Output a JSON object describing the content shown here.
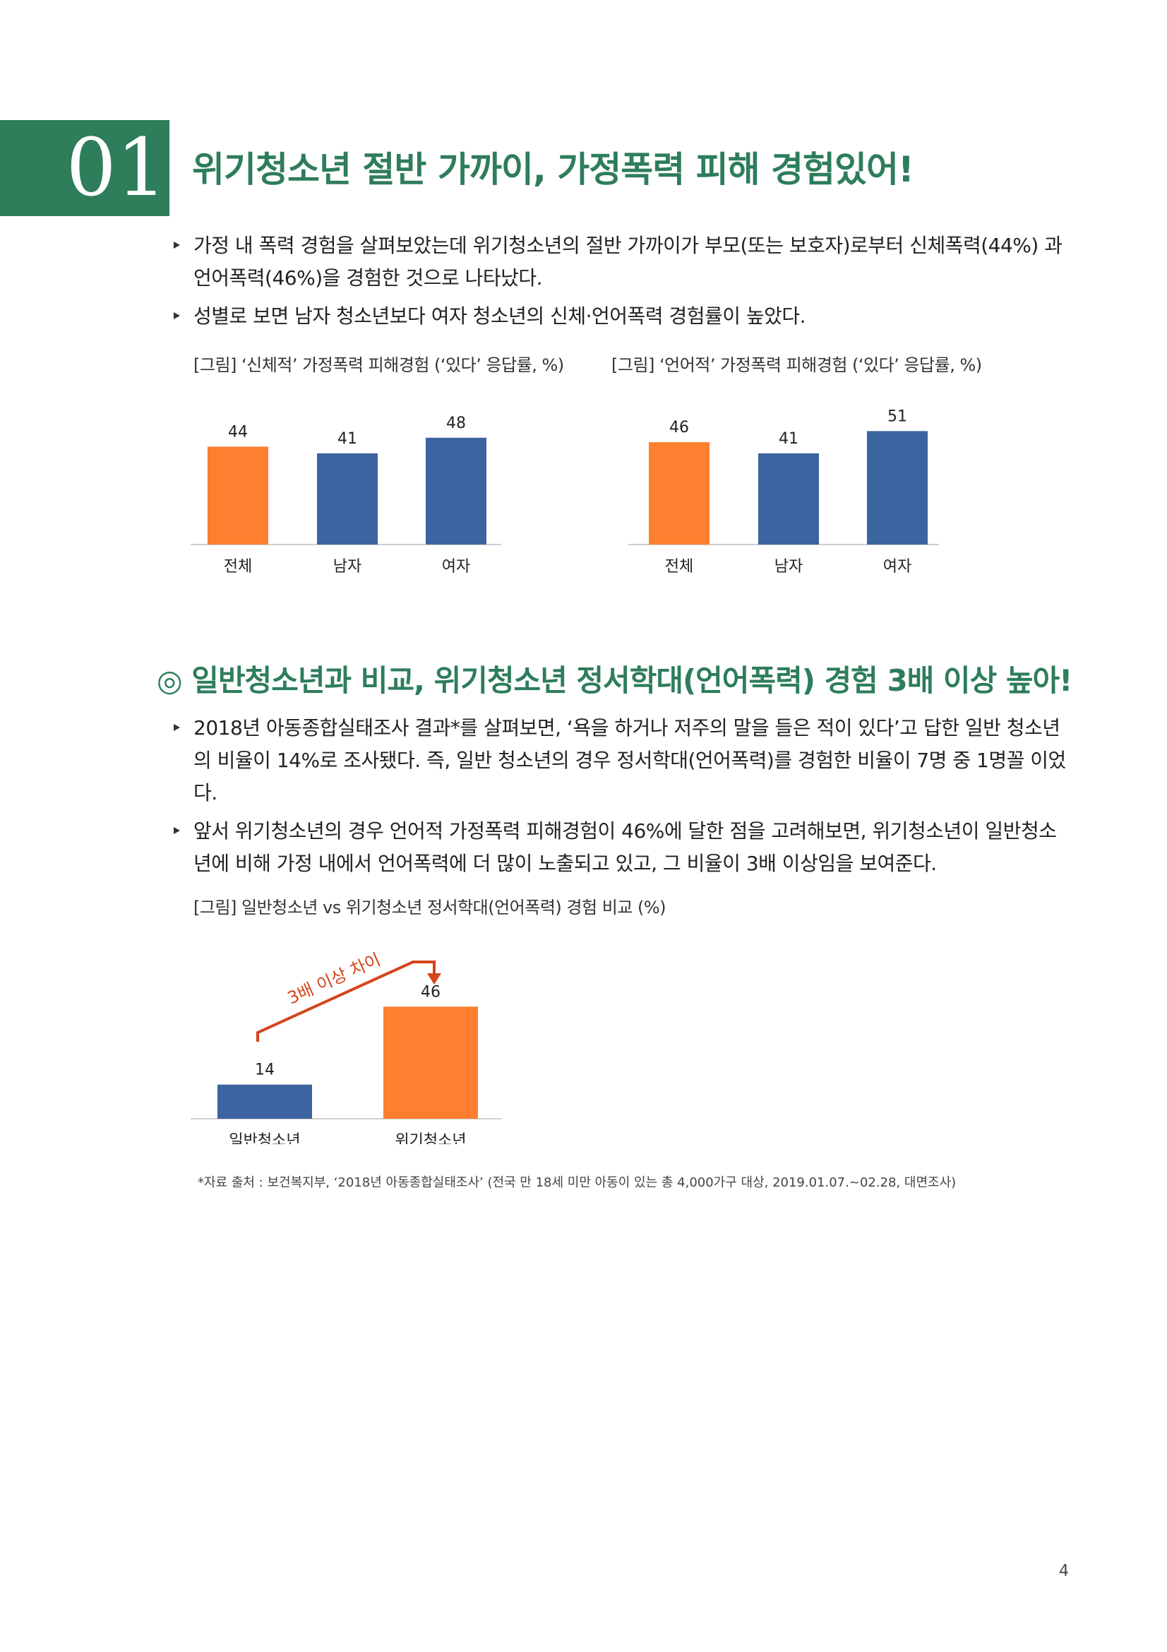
{
  "section": {
    "number": "01",
    "title": "위기청소년 절반 가까이, 가정폭력 피해 경험있어!"
  },
  "bullets1": [
    "가정 내 폭력 경험을 살펴보았는데 위기청소년의 절반 가까이가 부모(또는 보호자)로부터 신체폭력(44%) 과 언어폭력(46%)을 경험한 것으로 나타났다.",
    "성별로 보면 남자 청소년보다 여자 청소년의 신체·언어폭력 경험률이 높았다."
  ],
  "captions": {
    "chart1": "[그림] ‘신체적’ 가정폭력 피해경험 (‘있다’ 응답률, %)",
    "chart2": "[그림] ‘언어적’ 가정폭력 피해경험 (‘있다’ 응답률, %)",
    "chart3": "[그림] 일반청소년 vs 위기청소년 정서학대(언어폭력) 경험 비교 (%)"
  },
  "subsection": {
    "title": "◎ 일반청소년과 비교, 위기청소년 정서학대(언어폭력) 경험 3배 이상 높아!"
  },
  "bullets2": [
    "2018년 아동종합실태조사 결과*를 살펴보면, ‘욕을 하거나 저주의 말을 들은 적이 있다’고 답한 일반 청소년의 비율이 14%로 조사됐다. 즉, 일반 청소년의 경우 정서학대(언어폭력)를 경험한 비율이 7명 중 1명꼴 이었다.",
    "앞서 위기청소년의 경우 언어적 가정폭력 피해경험이 46%에 달한 점을 고려해보면, 위기청소년이 일반청소년에 비해 가정 내에서 언어폭력에 더 많이 노출되고 있고, 그 비율이 3배 이상임을 보여준다."
  ],
  "source": "*자료 출처 : 보건복지부, ‘2018년 아동종합실태조사’ (전국 만 18세 미만 아동이 있는 총 4,000가구 대상, 2019.01.07.~02.28, 대면조사)",
  "page_number": "4",
  "colors": {
    "accent": "#2e7d5b",
    "orange": "#fe7f2f",
    "blue": "#3b64a0",
    "arrow": "#d4451b"
  },
  "chart_data": [
    {
      "type": "bar",
      "categories": [
        "전체",
        "남자",
        "여자"
      ],
      "values": [
        44,
        41,
        48
      ],
      "ylim": [
        0,
        60
      ]
    },
    {
      "type": "bar",
      "categories": [
        "전체",
        "남자",
        "여자"
      ],
      "values": [
        46,
        41,
        51
      ],
      "ylim": [
        0,
        60
      ]
    },
    {
      "type": "bar",
      "categories": [
        "일반청소년",
        "위기청소년"
      ],
      "values": [
        14,
        46
      ],
      "ylim": [
        0,
        60
      ],
      "annotation": "3배 이상 차이"
    }
  ]
}
